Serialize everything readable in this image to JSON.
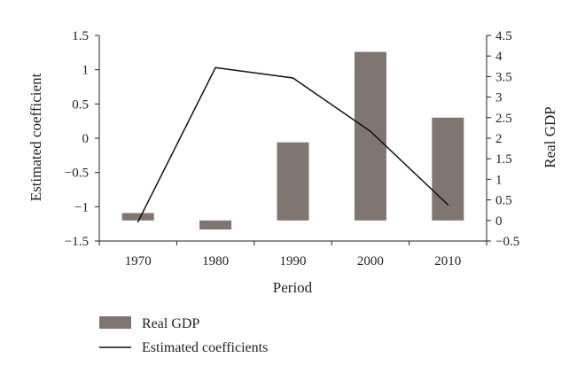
{
  "chart_data": {
    "type": "bar+line",
    "xlabel": "Period",
    "categories": [
      "1970",
      "1980",
      "1990",
      "2000",
      "2010"
    ],
    "series": [
      {
        "name": "Real GDP",
        "type": "bar",
        "axis": "right",
        "color": "#7f7672",
        "values": [
          0.18,
          -0.22,
          1.9,
          4.1,
          2.5
        ]
      },
      {
        "name": "Estimated coefficients",
        "type": "line",
        "axis": "left",
        "color": "#111111",
        "values": [
          -1.22,
          1.03,
          0.88,
          0.1,
          -0.97
        ]
      }
    ],
    "y_left": {
      "label": "Estimated coefficient",
      "range": [
        -1.5,
        1.5
      ],
      "ticks": [
        "1.5",
        "1",
        "0.5",
        "0",
        "−0.5",
        "−1",
        "−1.5"
      ],
      "tick_values": [
        1.5,
        1,
        0.5,
        0,
        -0.5,
        -1,
        -1.5
      ]
    },
    "y_right": {
      "label": "Real GDP",
      "range": [
        -0.5,
        4.5
      ],
      "ticks": [
        "4.5",
        "4",
        "3.5",
        "3",
        "2.5",
        "2",
        "1.5",
        "1",
        "0.5",
        "0",
        "−0.5"
      ],
      "tick_values": [
        4.5,
        4,
        3.5,
        3,
        2.5,
        2,
        1.5,
        1,
        0.5,
        0,
        -0.5
      ]
    },
    "legend": {
      "placement": "bottom-left",
      "items": [
        "Real GDP",
        "Estimated coefficients"
      ]
    },
    "grid": false
  }
}
